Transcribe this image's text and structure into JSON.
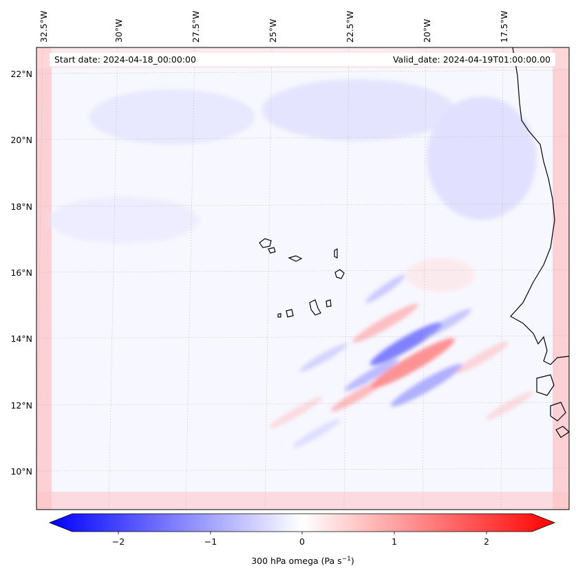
{
  "map": {
    "start_date": "Start date: 2024-04-18_00:00:00",
    "valid_date": "Valid_date: 2024-04-19T01:00:00.00",
    "lon_labels": [
      "32.5°W",
      "30°W",
      "27.5°W",
      "25°W",
      "22.5°W",
      "20°W",
      "17.5°W"
    ],
    "lat_labels": [
      "22°N",
      "20°N",
      "18°N",
      "16°N",
      "14°N",
      "12°N",
      "10°N"
    ],
    "field_colors": {
      "negative": "#0000ff",
      "zero": "#ffffff",
      "positive": "#ff0000"
    }
  },
  "colorbar": {
    "ticks": [
      "−2",
      "−1",
      "0",
      "1",
      "2"
    ],
    "label_main": "300 hPa omega (Pa s",
    "label_exp": "−1",
    "label_close": ")",
    "range": [
      -2.75,
      2.75
    ]
  }
}
